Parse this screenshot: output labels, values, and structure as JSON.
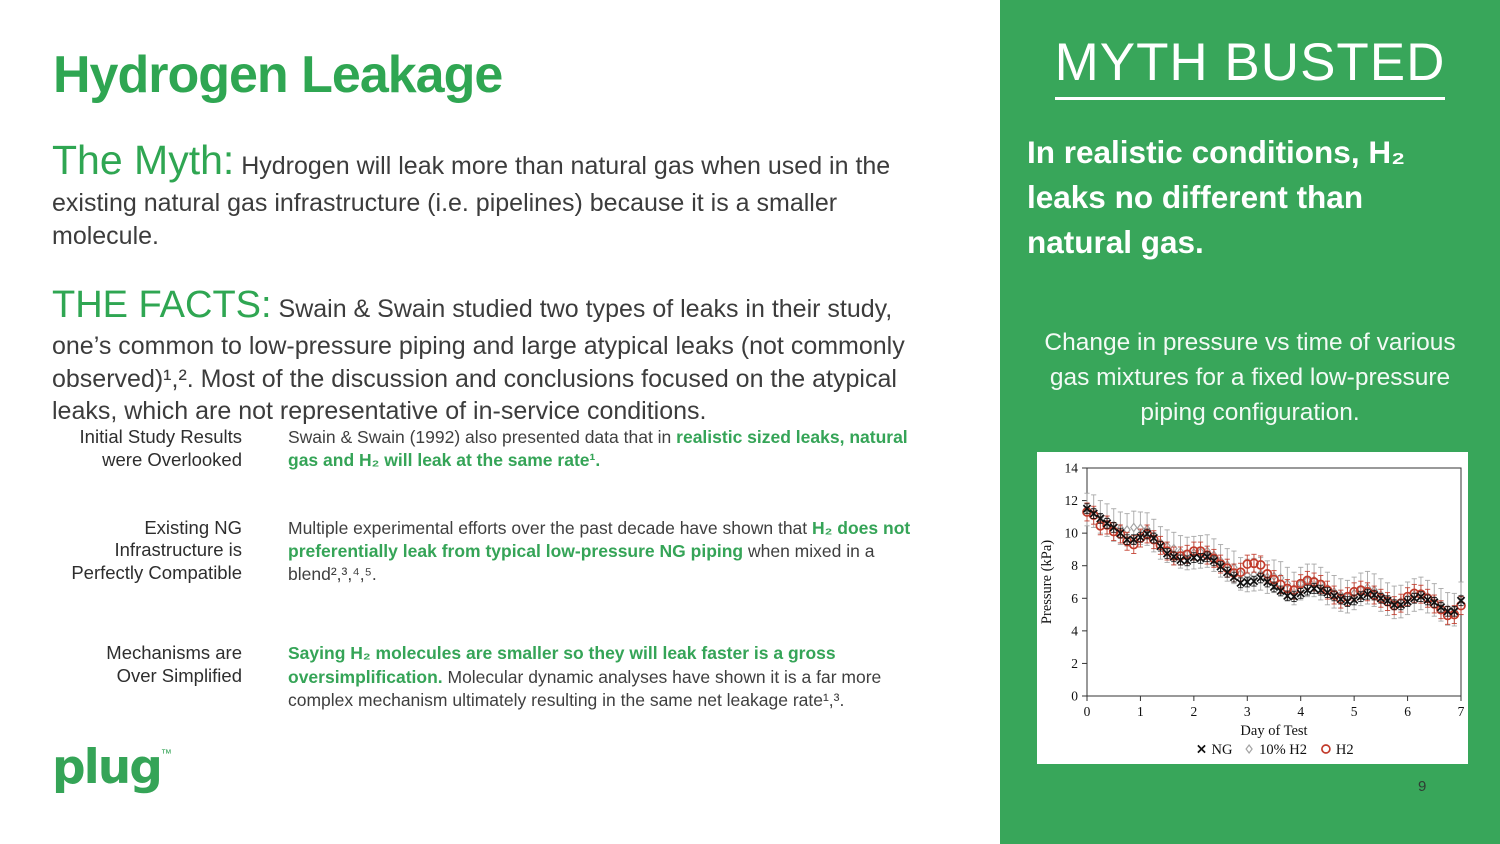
{
  "slide": {
    "title": "Hydrogen Leakage",
    "myth_label": "The Myth:",
    "myth_text": " Hydrogen will leak more than natural gas when used in the existing natural gas infrastructure (i.e. pipelines) because it is a smaller molecule.",
    "facts_label": "THE FACTS:",
    "facts_text": " Swain & Swain studied two types of leaks in their study, one’s common to low-pressure piping and large atypical leaks (not commonly observed)¹,². Most of the discussion and conclusions focused on the atypical leaks, which are not representative of in-service conditions.",
    "page_number": "9"
  },
  "rows": [
    {
      "label": "Initial Study Results\nwere Overlooked",
      "parts": [
        {
          "t": "Swain & Swain (1992) also presented data that in ",
          "g": false
        },
        {
          "t": "realistic sized leaks, natural gas and H₂ will leak at the same rate¹.",
          "g": true
        }
      ]
    },
    {
      "label": "Existing NG\nInfrastructure is\nPerfectly Compatible",
      "parts": [
        {
          "t": "Multiple experimental efforts over the past decade have shown that ",
          "g": false
        },
        {
          "t": "H₂ does not preferentially leak from typical low-pressure NG piping",
          "g": true
        },
        {
          "t": " when mixed in a blend²,³,⁴,⁵.",
          "g": false
        }
      ]
    },
    {
      "label": "Mechanisms are\nOver Simplified",
      "parts": [
        {
          "t": "Saying H₂ molecules are smaller so they will leak faster is a gross oversimplification.",
          "g": true
        },
        {
          "t": " Molecular dynamic analyses have shown it is a far more complex mechanism ultimately resulting in the same net leakage rate¹,³.",
          "g": false
        }
      ]
    }
  ],
  "logo": {
    "text": "plug",
    "tm": "™"
  },
  "panel": {
    "heading": "MYTH BUSTED",
    "statement": "In realistic conditions, H₂ leaks no different than natural gas.",
    "caption": "Change in pressure vs time of various gas mixtures for a fixed low-pressure piping configuration.",
    "bg_color": "#38a65a"
  },
  "colors": {
    "brand_green": "#2fa652",
    "inline_green": "#35a457",
    "text_dark": "#3c3c3c",
    "white": "#ffffff"
  },
  "chart_data": {
    "type": "scatter",
    "title": "",
    "xlabel": "Day of Test",
    "ylabel": "Pressure (kPa)",
    "xlim": [
      0,
      7
    ],
    "ylim": [
      0,
      14
    ],
    "xticks": [
      0,
      1,
      2,
      3,
      4,
      5,
      6,
      7
    ],
    "yticks": [
      0,
      2,
      4,
      6,
      8,
      10,
      12,
      14
    ],
    "grid": false,
    "legend_position": "bottom",
    "x_start": 0,
    "x_step": 0.125,
    "series": [
      {
        "name": "NG",
        "marker": "x",
        "color": "#111111",
        "err": 0.3,
        "z": 3,
        "values": [
          11.5,
          11.2,
          10.9,
          10.6,
          10.35,
          10.0,
          9.6,
          9.6,
          9.75,
          9.95,
          9.7,
          9.2,
          8.75,
          8.55,
          8.35,
          8.3,
          8.5,
          8.45,
          8.55,
          8.3,
          7.95,
          7.6,
          7.3,
          6.95,
          7.0,
          7.05,
          7.25,
          7.0,
          6.7,
          6.45,
          6.15,
          6.1,
          6.3,
          6.5,
          6.6,
          6.5,
          6.35,
          6.15,
          5.95,
          5.8,
          5.9,
          6.1,
          6.25,
          6.2,
          6.0,
          5.85,
          5.6,
          5.6,
          5.8,
          6.0,
          6.1,
          5.9,
          5.75,
          5.45,
          5.2,
          5.2,
          5.85
        ]
      },
      {
        "name": "10% H2",
        "marker": "diamond",
        "color": "#a3a3a3",
        "err": 1.0,
        "z": 1,
        "values": [
          11.45,
          11.35,
          11.0,
          10.8,
          10.5,
          10.3,
          10.2,
          10.35,
          10.3,
          10.25,
          9.85,
          9.4,
          9.2,
          9.05,
          8.85,
          8.75,
          8.8,
          8.85,
          8.9,
          8.65,
          8.3,
          8.05,
          7.9,
          7.5,
          7.4,
          7.45,
          7.5,
          7.3,
          7.35,
          7.25,
          6.9,
          6.6,
          6.9,
          7.1,
          7.1,
          6.9,
          6.6,
          6.4,
          6.2,
          6.1,
          6.3,
          6.55,
          6.65,
          6.5,
          6.2,
          5.95,
          5.75,
          5.8,
          6.0,
          6.2,
          6.3,
          6.1,
          5.9,
          5.6,
          5.35,
          5.3,
          6.0
        ]
      },
      {
        "name": "H2",
        "marker": "circle",
        "color": "#c23b2b",
        "err": 0.55,
        "z": 2,
        "values": [
          11.3,
          11.1,
          10.45,
          10.5,
          10.1,
          9.95,
          9.5,
          9.3,
          9.7,
          9.95,
          9.6,
          9.25,
          8.9,
          8.6,
          8.6,
          8.7,
          8.9,
          8.9,
          8.65,
          8.45,
          8.1,
          7.85,
          7.55,
          7.6,
          8.1,
          8.15,
          8.05,
          7.5,
          7.15,
          6.85,
          6.6,
          6.5,
          6.9,
          7.1,
          7.0,
          6.85,
          6.5,
          6.2,
          5.95,
          6.1,
          6.4,
          6.5,
          6.4,
          6.2,
          6.0,
          5.8,
          5.55,
          5.7,
          6.1,
          6.3,
          6.25,
          6.0,
          5.65,
          5.3,
          4.95,
          5.0,
          5.55
        ]
      }
    ]
  }
}
